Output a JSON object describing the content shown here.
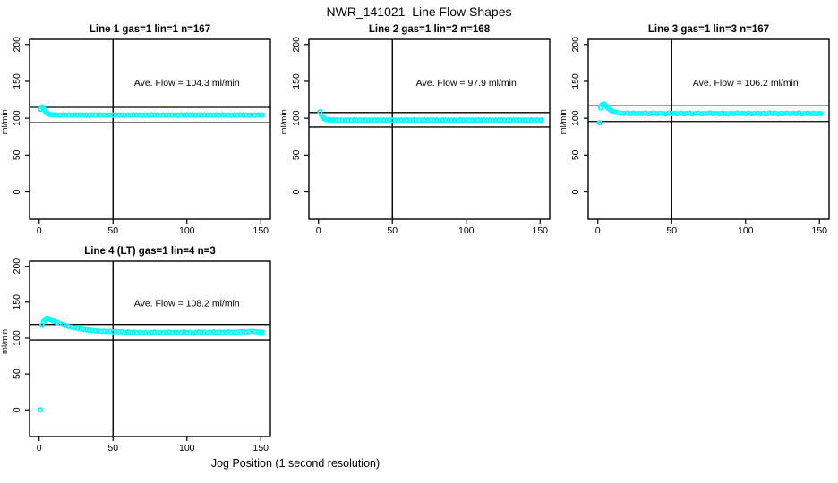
{
  "figure": {
    "title": "NWR_141021  Line Flow Shapes",
    "xlabel": "Jog Position (1 second resolution)",
    "marker_color": "#00FFFF",
    "line_color": "#000000",
    "background": "#FFFFFF"
  },
  "chart_data": [
    {
      "type": "scatter",
      "title": "Line 1 gas=1 lin=1 n=167",
      "annotation": "Ave. Flow =  104.3  ml/min",
      "ave_flow_ml_min": 104.3,
      "ylabel": "ml/min",
      "xlim": [
        -6.5,
        156.5
      ],
      "ylim": [
        -37,
        207
      ],
      "xticks": [
        0,
        50,
        100,
        150
      ],
      "yticks": [
        0,
        50,
        100,
        150,
        200
      ],
      "vline_x": 50,
      "hlines": [
        114.7,
        93.9
      ],
      "points": [
        [
          1,
          112
        ],
        [
          2,
          115.5
        ],
        [
          3,
          113
        ],
        [
          4,
          109.5
        ],
        [
          5,
          107.5
        ],
        [
          6,
          106
        ],
        [
          7,
          105.2
        ],
        [
          8,
          104.8
        ],
        [
          9,
          104.6
        ],
        [
          10,
          104.5
        ],
        [
          12,
          104.4
        ],
        [
          14,
          104.1
        ],
        [
          16,
          104.5
        ],
        [
          18,
          104.2
        ],
        [
          20,
          104.3
        ],
        [
          22,
          104.0
        ],
        [
          24,
          104.4
        ],
        [
          26,
          104.1
        ],
        [
          28,
          104.5
        ],
        [
          30,
          104.2
        ],
        [
          32,
          104.3
        ],
        [
          34,
          104.0
        ],
        [
          36,
          104.4
        ],
        [
          38,
          104.1
        ],
        [
          40,
          104.5
        ],
        [
          42,
          104.2
        ],
        [
          44,
          104.3
        ],
        [
          46,
          104.0
        ],
        [
          48,
          104.4
        ],
        [
          50,
          104.1
        ],
        [
          52,
          104.5
        ],
        [
          54,
          104.2
        ],
        [
          56,
          104.3
        ],
        [
          58,
          104.0
        ],
        [
          60,
          104.4
        ],
        [
          62,
          104.1
        ],
        [
          64,
          104.5
        ],
        [
          66,
          104.2
        ],
        [
          68,
          104.3
        ],
        [
          70,
          104.0
        ],
        [
          72,
          104.4
        ],
        [
          74,
          104.1
        ],
        [
          76,
          104.5
        ],
        [
          78,
          104.2
        ],
        [
          80,
          104.3
        ],
        [
          82,
          104.0
        ],
        [
          84,
          104.4
        ],
        [
          86,
          104.1
        ],
        [
          88,
          104.5
        ],
        [
          90,
          104.2
        ],
        [
          92,
          104.3
        ],
        [
          94,
          104.0
        ],
        [
          96,
          104.4
        ],
        [
          98,
          104.1
        ],
        [
          100,
          104.5
        ],
        [
          102,
          104.2
        ],
        [
          104,
          104.3
        ],
        [
          106,
          104.0
        ],
        [
          108,
          104.4
        ],
        [
          110,
          104.1
        ],
        [
          112,
          104.5
        ],
        [
          114,
          104.2
        ],
        [
          116,
          104.3
        ],
        [
          118,
          104.0
        ],
        [
          120,
          104.4
        ],
        [
          122,
          104.1
        ],
        [
          124,
          104.5
        ],
        [
          126,
          104.2
        ],
        [
          128,
          104.3
        ],
        [
          130,
          104.0
        ],
        [
          132,
          104.4
        ],
        [
          134,
          104.1
        ],
        [
          136,
          104.5
        ],
        [
          138,
          104.2
        ],
        [
          140,
          104.3
        ],
        [
          142,
          104.0
        ],
        [
          144,
          104.4
        ],
        [
          146,
          104.1
        ],
        [
          148,
          104.5
        ],
        [
          150,
          104.2
        ],
        [
          151,
          104.3
        ]
      ]
    },
    {
      "type": "scatter",
      "title": "Line 2 gas=1 lin=2 n=168",
      "annotation": "Ave. Flow =  97.9  ml/min",
      "ave_flow_ml_min": 97.9,
      "ylabel": "ml/min",
      "xlim": [
        -6.5,
        156.5
      ],
      "ylim": [
        -37,
        207
      ],
      "xticks": [
        0,
        50,
        100,
        150
      ],
      "yticks": [
        0,
        50,
        100,
        150,
        200
      ],
      "vline_x": 50,
      "hlines": [
        107.7,
        88.1
      ],
      "points": [
        [
          1,
          108.5
        ],
        [
          2,
          104
        ],
        [
          3,
          101
        ],
        [
          4,
          99.3
        ],
        [
          5,
          98.4
        ],
        [
          6,
          98
        ],
        [
          7,
          97.8
        ],
        [
          8,
          97.7
        ],
        [
          9,
          97.7
        ],
        [
          10,
          97.6
        ],
        [
          12,
          97.7
        ],
        [
          14,
          97.4
        ],
        [
          16,
          97.8
        ],
        [
          18,
          97.5
        ],
        [
          20,
          97.6
        ],
        [
          22,
          97.3
        ],
        [
          24,
          97.7
        ],
        [
          26,
          97.4
        ],
        [
          28,
          97.8
        ],
        [
          30,
          97.5
        ],
        [
          32,
          97.6
        ],
        [
          34,
          97.3
        ],
        [
          36,
          97.7
        ],
        [
          38,
          97.4
        ],
        [
          40,
          97.8
        ],
        [
          42,
          97.5
        ],
        [
          44,
          97.6
        ],
        [
          46,
          97.3
        ],
        [
          48,
          97.7
        ],
        [
          50,
          97.4
        ],
        [
          52,
          97.8
        ],
        [
          54,
          97.5
        ],
        [
          56,
          97.6
        ],
        [
          58,
          97.3
        ],
        [
          60,
          97.7
        ],
        [
          62,
          97.4
        ],
        [
          64,
          97.8
        ],
        [
          66,
          97.5
        ],
        [
          68,
          97.6
        ],
        [
          70,
          97.3
        ],
        [
          72,
          97.7
        ],
        [
          74,
          97.4
        ],
        [
          76,
          97.8
        ],
        [
          78,
          97.5
        ],
        [
          80,
          97.6
        ],
        [
          82,
          97.3
        ],
        [
          84,
          97.7
        ],
        [
          86,
          97.4
        ],
        [
          88,
          97.8
        ],
        [
          90,
          97.5
        ],
        [
          92,
          97.6
        ],
        [
          94,
          97.3
        ],
        [
          96,
          97.7
        ],
        [
          98,
          97.4
        ],
        [
          100,
          97.8
        ],
        [
          102,
          97.5
        ],
        [
          104,
          97.6
        ],
        [
          106,
          97.3
        ],
        [
          108,
          97.7
        ],
        [
          110,
          97.4
        ],
        [
          112,
          97.8
        ],
        [
          114,
          97.5
        ],
        [
          116,
          97.6
        ],
        [
          118,
          97.3
        ],
        [
          120,
          97.7
        ],
        [
          122,
          97.4
        ],
        [
          124,
          97.8
        ],
        [
          126,
          97.5
        ],
        [
          128,
          97.6
        ],
        [
          130,
          97.3
        ],
        [
          132,
          97.7
        ],
        [
          134,
          97.4
        ],
        [
          136,
          97.8
        ],
        [
          138,
          97.5
        ],
        [
          140,
          97.6
        ],
        [
          142,
          97.3
        ],
        [
          144,
          97.7
        ],
        [
          146,
          97.4
        ],
        [
          148,
          97.8
        ],
        [
          150,
          97.5
        ],
        [
          151,
          97.6
        ]
      ]
    },
    {
      "type": "scatter",
      "title": "Line 3 gas=1 lin=3 n=167",
      "annotation": "Ave. Flow =  106.2  ml/min",
      "ave_flow_ml_min": 106.2,
      "ylabel": "ml/min",
      "xlim": [
        -6.5,
        156.5
      ],
      "ylim": [
        -37,
        207
      ],
      "xticks": [
        0,
        50,
        100,
        150
      ],
      "yticks": [
        0,
        50,
        100,
        150,
        200
      ],
      "vline_x": 50,
      "hlines": [
        116.8,
        95.6
      ],
      "points": [
        [
          1,
          94
        ],
        [
          2,
          114
        ],
        [
          3,
          118.5
        ],
        [
          4,
          119.5
        ],
        [
          5,
          117.5
        ],
        [
          6,
          115.5
        ],
        [
          7,
          113.5
        ],
        [
          8,
          111.8
        ],
        [
          9,
          110.3
        ],
        [
          10,
          109.2
        ],
        [
          12,
          107.8
        ],
        [
          14,
          107.1
        ],
        [
          16,
          106.7
        ],
        [
          18,
          106.4
        ],
        [
          20,
          107.0
        ],
        [
          22,
          106.1
        ],
        [
          24,
          106.8
        ],
        [
          26,
          105.9
        ],
        [
          28,
          106.6
        ],
        [
          30,
          106.2
        ],
        [
          32,
          107.1
        ],
        [
          34,
          105.8
        ],
        [
          36,
          106.5
        ],
        [
          38,
          106.9
        ],
        [
          40,
          106.0
        ],
        [
          42,
          106.7
        ],
        [
          44,
          106.2
        ],
        [
          46,
          105.8
        ],
        [
          48,
          106.9
        ],
        [
          50,
          106.3
        ],
        [
          52,
          106.6
        ],
        [
          54,
          105.9
        ],
        [
          56,
          107.0
        ],
        [
          58,
          106.1
        ],
        [
          60,
          106.5
        ],
        [
          62,
          106.8
        ],
        [
          64,
          105.8
        ],
        [
          66,
          106.4
        ],
        [
          68,
          106.9
        ],
        [
          70,
          106.0
        ],
        [
          72,
          106.6
        ],
        [
          74,
          106.2
        ],
        [
          76,
          107.1
        ],
        [
          78,
          105.9
        ],
        [
          80,
          106.5
        ],
        [
          82,
          106.0
        ],
        [
          84,
          106.8
        ],
        [
          86,
          106.3
        ],
        [
          88,
          105.8
        ],
        [
          90,
          106.7
        ],
        [
          92,
          106.1
        ],
        [
          94,
          106.9
        ],
        [
          96,
          106.2
        ],
        [
          98,
          106.5
        ],
        [
          100,
          105.9
        ],
        [
          102,
          106.8
        ],
        [
          104,
          106.0
        ],
        [
          106,
          106.4
        ],
        [
          108,
          106.9
        ],
        [
          110,
          106.1
        ],
        [
          112,
          106.6
        ],
        [
          114,
          105.8
        ],
        [
          116,
          107.0
        ],
        [
          118,
          106.3
        ],
        [
          120,
          106.7
        ],
        [
          122,
          105.9
        ],
        [
          124,
          106.5
        ],
        [
          126,
          106.1
        ],
        [
          128,
          106.8
        ],
        [
          130,
          106.0
        ],
        [
          132,
          106.6
        ],
        [
          134,
          106.2
        ],
        [
          136,
          107.0
        ],
        [
          138,
          105.9
        ],
        [
          140,
          106.4
        ],
        [
          142,
          106.8
        ],
        [
          144,
          106.1
        ],
        [
          146,
          106.5
        ],
        [
          148,
          106.0
        ],
        [
          150,
          106.4
        ],
        [
          151,
          106.3
        ]
      ]
    },
    {
      "type": "scatter",
      "title": "Line 4 (LT) gas=1 lin=4 n=3",
      "annotation": "Ave. Flow =  108.2  ml/min",
      "ave_flow_ml_min": 108.2,
      "ylabel": "ml/min",
      "xlim": [
        -6.5,
        156.5
      ],
      "ylim": [
        -37,
        207
      ],
      "xticks": [
        0,
        50,
        100,
        150
      ],
      "yticks": [
        0,
        50,
        100,
        150,
        200
      ],
      "vline_x": 50,
      "hlines": [
        119.0,
        97.4
      ],
      "points": [
        [
          1,
          0
        ],
        [
          2,
          118
        ],
        [
          3,
          123
        ],
        [
          4,
          126
        ],
        [
          5,
          127.5
        ],
        [
          6,
          127.2
        ],
        [
          7,
          126.4
        ],
        [
          8,
          125.5
        ],
        [
          9,
          124.5
        ],
        [
          10,
          123.5
        ],
        [
          12,
          121.8
        ],
        [
          14,
          120.2
        ],
        [
          16,
          118.8
        ],
        [
          18,
          117.4
        ],
        [
          20,
          116.2
        ],
        [
          22,
          115.2
        ],
        [
          24,
          114.2
        ],
        [
          26,
          113.4
        ],
        [
          28,
          112.7
        ],
        [
          30,
          112.1
        ],
        [
          32,
          111.5
        ],
        [
          34,
          111.0
        ],
        [
          36,
          110.6
        ],
        [
          38,
          110.2
        ],
        [
          40,
          109.8
        ],
        [
          42,
          109.4
        ],
        [
          44,
          109.8
        ],
        [
          46,
          108.9
        ],
        [
          48,
          109.5
        ],
        [
          50,
          108.6
        ],
        [
          52,
          109.2
        ],
        [
          54,
          108.3
        ],
        [
          56,
          108.9
        ],
        [
          58,
          107.9
        ],
        [
          60,
          108.6
        ],
        [
          62,
          107.6
        ],
        [
          64,
          108.3
        ],
        [
          66,
          107.4
        ],
        [
          68,
          108.0
        ],
        [
          70,
          107.2
        ],
        [
          72,
          107.8
        ],
        [
          74,
          107.0
        ],
        [
          76,
          107.7
        ],
        [
          78,
          108.3
        ],
        [
          80,
          107.3
        ],
        [
          82,
          107.9
        ],
        [
          84,
          107.1
        ],
        [
          86,
          107.8
        ],
        [
          88,
          108.4
        ],
        [
          90,
          107.4
        ],
        [
          92,
          108.0
        ],
        [
          94,
          107.2
        ],
        [
          96,
          107.9
        ],
        [
          98,
          108.5
        ],
        [
          100,
          107.5
        ],
        [
          102,
          108.1
        ],
        [
          104,
          107.3
        ],
        [
          106,
          108.0
        ],
        [
          108,
          108.6
        ],
        [
          110,
          107.6
        ],
        [
          112,
          108.2
        ],
        [
          114,
          107.4
        ],
        [
          116,
          108.1
        ],
        [
          118,
          108.7
        ],
        [
          120,
          107.7
        ],
        [
          122,
          108.3
        ],
        [
          124,
          107.5
        ],
        [
          126,
          108.2
        ],
        [
          128,
          108.8
        ],
        [
          130,
          107.8
        ],
        [
          132,
          108.4
        ],
        [
          134,
          108.0
        ],
        [
          136,
          108.6
        ],
        [
          138,
          109.0
        ],
        [
          140,
          108.4
        ],
        [
          142,
          109.2
        ],
        [
          144,
          109.6
        ],
        [
          146,
          109.0
        ],
        [
          148,
          108.6
        ],
        [
          150,
          108.3
        ],
        [
          151,
          108.4
        ]
      ]
    }
  ]
}
